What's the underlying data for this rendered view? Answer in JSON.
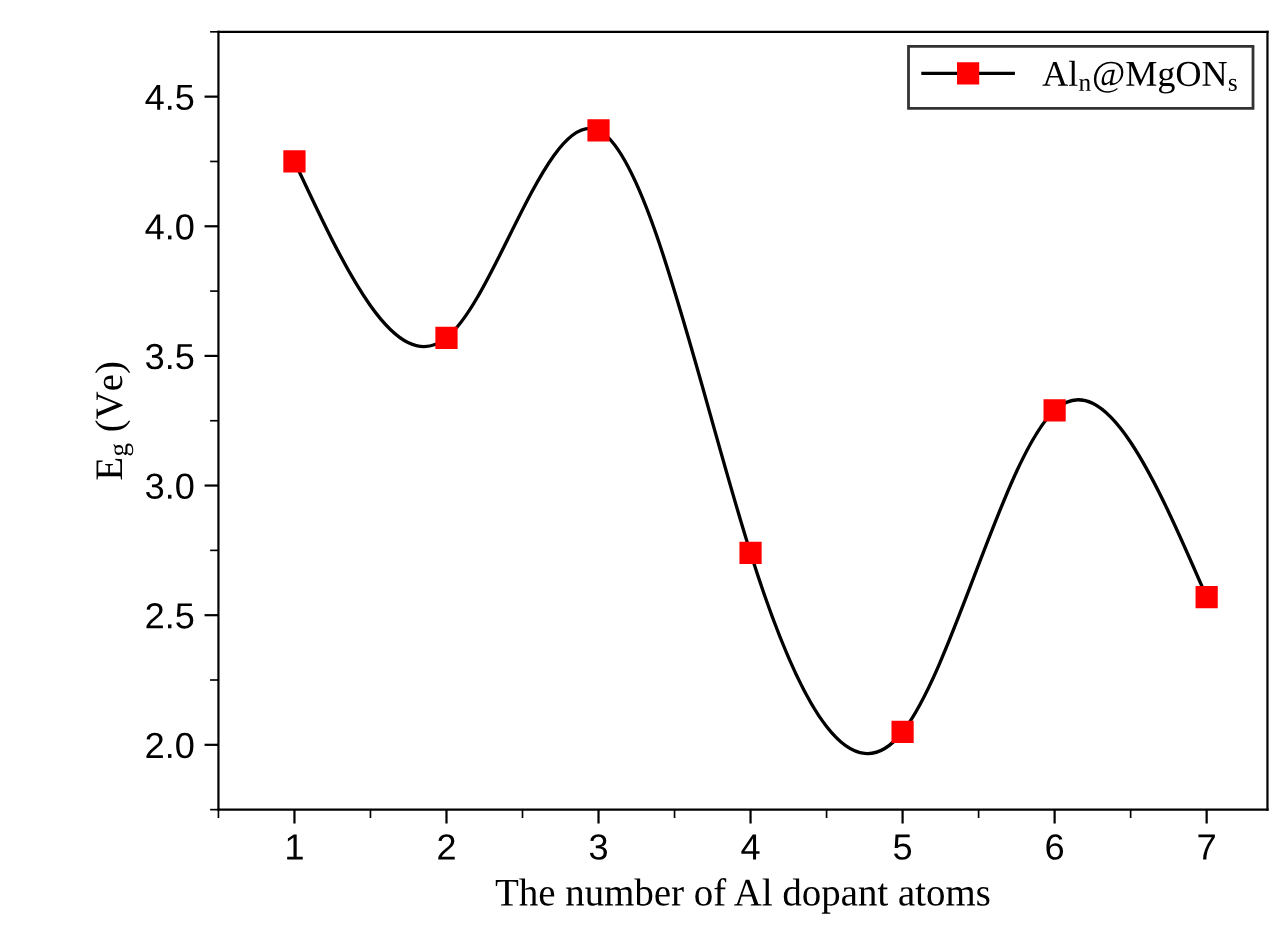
{
  "chart_data": {
    "type": "line",
    "xlabel": "The number of Al dopant atoms",
    "ylabel": "E$_{g}$ (Ve)",
    "x": [
      1,
      2,
      3,
      4,
      5,
      6,
      7
    ],
    "series": [
      {
        "name": "Al$_{n}$@MgON$_{s}$",
        "color": "#ff0000",
        "values": [
          4.25,
          3.57,
          4.37,
          2.74,
          2.05,
          3.29,
          2.57
        ]
      }
    ],
    "xlim": [
      0.5,
      7.4
    ],
    "xticks": [
      1,
      2,
      3,
      4,
      5,
      6,
      7
    ],
    "ylim": [
      1.75,
      4.75
    ],
    "yticks": [
      {
        "value": 2,
        "label": "2.0"
      },
      2.5,
      {
        "value": 3,
        "label": "3.0"
      },
      3.5,
      {
        "value": 4,
        "label": "4.0"
      },
      4.5
    ],
    "marker": "square",
    "line_style": "solid",
    "legend": "top right",
    "grid": false
  }
}
